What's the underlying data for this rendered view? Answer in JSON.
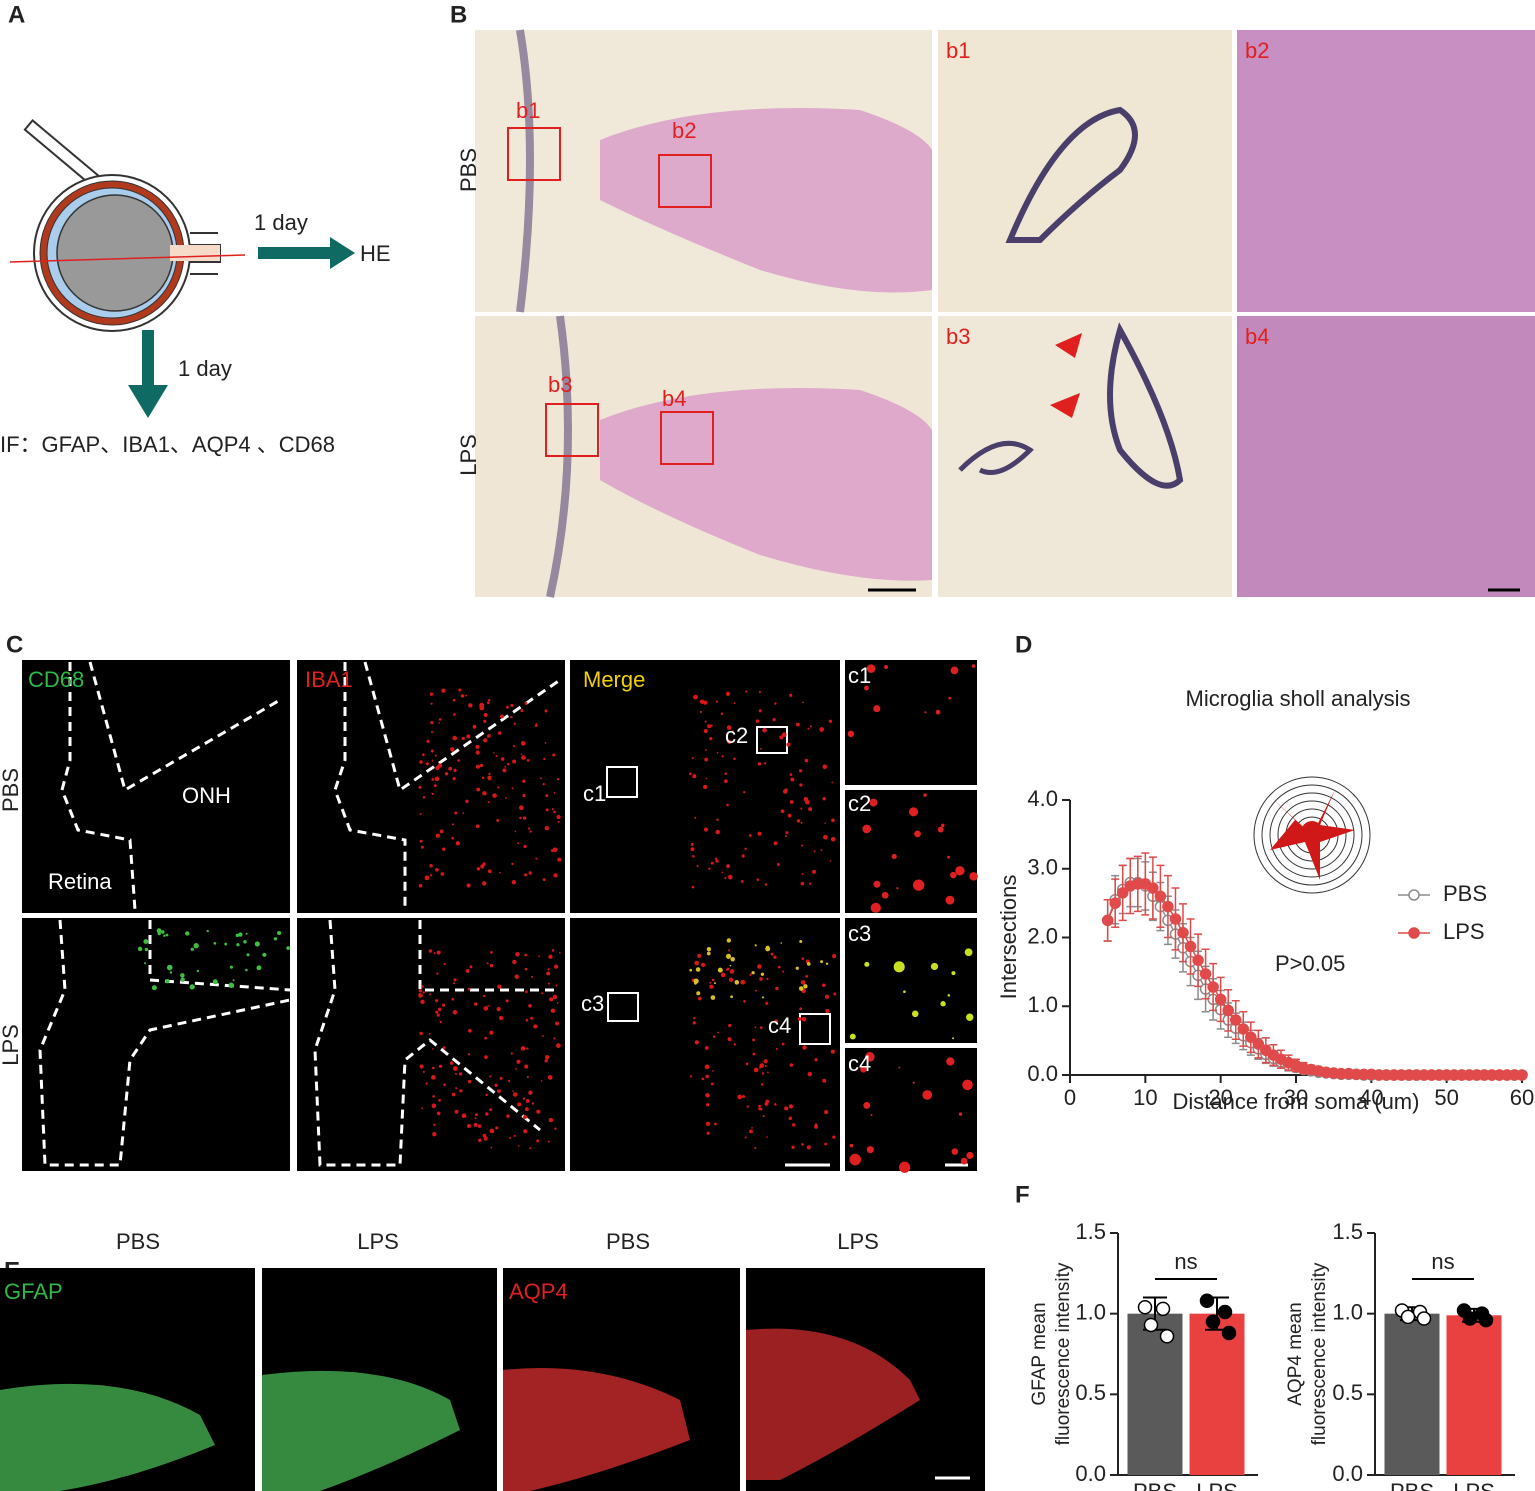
{
  "panel_labels": [
    "A",
    "B",
    "C",
    "D",
    "E",
    "F"
  ],
  "panel_a": {
    "he_time": "1 day",
    "he": "HE",
    "if_time": "1 day",
    "if": "IF：GFAP、IBA1、AQP4 、CD68"
  },
  "panel_b": {
    "rows": [
      "PBS",
      "LPS"
    ],
    "boxes": [
      "b1",
      "b2",
      "b3",
      "b4"
    ],
    "insets": [
      "b1",
      "b2",
      "b3",
      "b4"
    ]
  },
  "panel_c": {
    "rows": [
      "PBS",
      "LPS"
    ],
    "channels": [
      "CD68",
      "IBA1",
      "Merge"
    ],
    "regions": [
      "ONH",
      "Retina"
    ],
    "boxes": [
      "c1",
      "c2",
      "c3",
      "c4"
    ],
    "insets": [
      "c1",
      "c2",
      "c3",
      "c4"
    ]
  },
  "panel_e": {
    "groups": [
      "PBS",
      "LPS",
      "PBS",
      "LPS"
    ],
    "stains": [
      "GFAP",
      "AQP4"
    ]
  },
  "chart_data": [
    {
      "type": "line",
      "title": "Microglia sholl analysis",
      "xlabel": "Distance from soma (um)",
      "ylabel": "Intersections",
      "annotation": "P>0.05",
      "legend": "right",
      "x": [
        5,
        6,
        7,
        8,
        9,
        10,
        11,
        12,
        13,
        14,
        15,
        16,
        17,
        18,
        19,
        20,
        21,
        22,
        23,
        24,
        25,
        26,
        27,
        28,
        29,
        30,
        31,
        32,
        33,
        34,
        35,
        36,
        37,
        38,
        39,
        40,
        41,
        42,
        43,
        44,
        45,
        46,
        47,
        48,
        49,
        50,
        51,
        52,
        53,
        54,
        55,
        56,
        57,
        58,
        59,
        60
      ],
      "series": [
        {
          "name": "PBS",
          "color": "#8c8c8c",
          "marker": "open",
          "values": [
            2.25,
            2.55,
            2.7,
            2.8,
            2.8,
            2.75,
            2.6,
            2.45,
            2.25,
            2.05,
            1.85,
            1.65,
            1.45,
            1.25,
            1.1,
            0.95,
            0.8,
            0.68,
            0.57,
            0.47,
            0.38,
            0.3,
            0.24,
            0.19,
            0.14,
            0.11,
            0.08,
            0.06,
            0.04,
            0.03,
            0.02,
            0.01,
            0.01,
            0.01,
            0,
            0,
            0,
            0,
            0,
            0,
            0,
            0,
            0,
            0,
            0,
            0,
            0,
            0,
            0,
            0,
            0,
            0,
            0,
            0,
            0,
            0
          ],
          "errors": [
            0.3,
            0.35,
            0.35,
            0.35,
            0.35,
            0.35,
            0.35,
            0.35,
            0.35,
            0.35,
            0.35,
            0.35,
            0.35,
            0.33,
            0.3,
            0.28,
            0.25,
            0.22,
            0.2,
            0.18,
            0.15,
            0.13,
            0.11,
            0.09,
            0.08,
            0.06,
            0.05,
            0.04,
            0.03,
            0.02,
            0.02,
            0.01,
            0.01,
            0.01,
            0,
            0,
            0,
            0,
            0,
            0,
            0,
            0,
            0,
            0,
            0,
            0,
            0,
            0,
            0,
            0,
            0,
            0,
            0,
            0,
            0,
            0
          ]
        },
        {
          "name": "LPS",
          "color": "#e04a4a",
          "marker": "filled",
          "values": [
            2.25,
            2.5,
            2.65,
            2.75,
            2.78,
            2.78,
            2.72,
            2.6,
            2.45,
            2.27,
            2.07,
            1.87,
            1.67,
            1.47,
            1.28,
            1.1,
            0.94,
            0.8,
            0.67,
            0.55,
            0.45,
            0.36,
            0.29,
            0.23,
            0.18,
            0.14,
            0.1,
            0.08,
            0.06,
            0.04,
            0.03,
            0.02,
            0.02,
            0.01,
            0.01,
            0.01,
            0,
            0,
            0,
            0,
            0,
            0,
            0,
            0,
            0,
            0,
            0,
            0,
            0,
            0,
            0,
            0,
            0,
            0,
            0,
            0
          ],
          "errors": [
            0.3,
            0.35,
            0.4,
            0.4,
            0.4,
            0.45,
            0.45,
            0.45,
            0.45,
            0.45,
            0.42,
            0.4,
            0.38,
            0.36,
            0.34,
            0.32,
            0.3,
            0.28,
            0.25,
            0.22,
            0.2,
            0.18,
            0.15,
            0.13,
            0.11,
            0.09,
            0.08,
            0.06,
            0.05,
            0.04,
            0.03,
            0.02,
            0.02,
            0.02,
            0.01,
            0.01,
            0,
            0,
            0,
            0,
            0,
            0,
            0,
            0,
            0,
            0,
            0,
            0,
            0,
            0,
            0,
            0,
            0,
            0,
            0,
            0
          ]
        }
      ],
      "xlim": [
        0,
        60
      ],
      "xticks": [
        0,
        10,
        20,
        30,
        40,
        50,
        60
      ],
      "ylim": [
        0,
        4
      ],
      "yticks": [
        {
          "value": 0,
          "label": "0.0"
        },
        {
          "value": 1,
          "label": "1.0"
        },
        {
          "value": 2,
          "label": "2.0"
        },
        {
          "value": 3,
          "label": "3.0"
        },
        {
          "value": 4,
          "label": "4.0"
        }
      ]
    },
    {
      "type": "bar",
      "ylabel": [
        "GFAP mean",
        "fluorescence intensity"
      ],
      "categories": [
        "PBS",
        "LPS"
      ],
      "values": [
        1.0,
        1.0
      ],
      "errors": [
        0.1,
        0.1
      ],
      "colors": [
        "#5a5a5a",
        "#e8413f"
      ],
      "point_colors": [
        "#ffffff",
        "#000000"
      ],
      "points": [
        [
          1.04,
          1.03,
          0.93,
          0.86
        ],
        [
          1.08,
          1.01,
          0.95,
          0.88
        ]
      ],
      "annotation": "ns",
      "ylim": [
        0,
        1.5
      ],
      "yticks": [
        {
          "value": 0,
          "label": "0.0"
        },
        {
          "value": 0.5,
          "label": "0.5"
        },
        {
          "value": 1,
          "label": "1.0"
        },
        {
          "value": 1.5,
          "label": "1.5"
        }
      ]
    },
    {
      "type": "bar",
      "ylabel": [
        "AQP4 mean",
        "fluorescence intensity"
      ],
      "categories": [
        "PBS",
        "LPS"
      ],
      "values": [
        1.0,
        0.99
      ],
      "errors": [
        0.04,
        0.04
      ],
      "colors": [
        "#5a5a5a",
        "#e8413f"
      ],
      "point_colors": [
        "#ffffff",
        "#000000"
      ],
      "points": [
        [
          1.02,
          1.01,
          0.98,
          0.97
        ],
        [
          1.02,
          1.0,
          0.97,
          0.96
        ]
      ],
      "annotation": "ns",
      "ylim": [
        0,
        1.5
      ],
      "yticks": [
        {
          "value": 0,
          "label": "0.0"
        },
        {
          "value": 0.5,
          "label": "0.5"
        },
        {
          "value": 1,
          "label": "1.0"
        },
        {
          "value": 1.5,
          "label": "1.5"
        }
      ]
    }
  ]
}
